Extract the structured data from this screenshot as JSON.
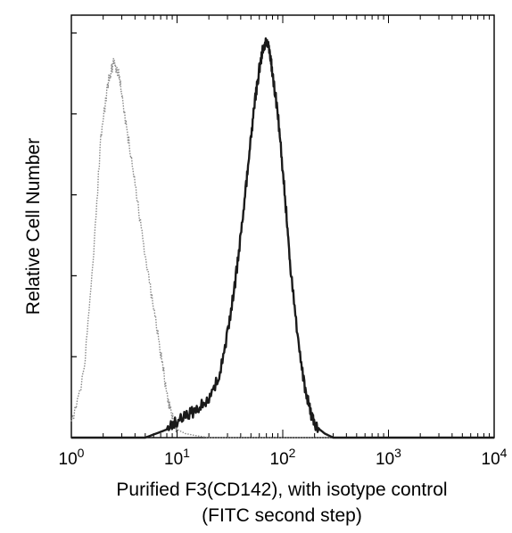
{
  "chart_data": {
    "type": "line",
    "title": "",
    "xlabel": "Purified F3(CD142), with isotype control",
    "xlabel_line2": "(FITC second step)",
    "ylabel": "Relative Cell Number",
    "x_scale": "log",
    "xlim": [
      1,
      10000
    ],
    "ylim": [
      0,
      1
    ],
    "x_ticks": [
      {
        "value": 1,
        "base": "10",
        "exp": "0"
      },
      {
        "value": 10,
        "base": "10",
        "exp": "1"
      },
      {
        "value": 100,
        "base": "10",
        "exp": "2"
      },
      {
        "value": 1000,
        "base": "10",
        "exp": "3"
      },
      {
        "value": 10000,
        "base": "10",
        "exp": "4"
      }
    ],
    "y_ticks": [
      0,
      0.2,
      0.4,
      0.6,
      0.8,
      1.0
    ],
    "grid": false,
    "legend": "none",
    "series": [
      {
        "style": "dotted-gray",
        "color": "#8a8a8a",
        "x": [
          1.0,
          1.3,
          1.6,
          1.9,
          2.2,
          2.5,
          2.8,
          3.1,
          3.6,
          4.2,
          5.0,
          6.0,
          7.0,
          8.0,
          9.0,
          10.0,
          12.0,
          15.0,
          20.0,
          50.0,
          100.0,
          1000.0,
          10000.0
        ],
        "y": [
          0.04,
          0.15,
          0.43,
          0.74,
          0.87,
          0.93,
          0.9,
          0.82,
          0.71,
          0.59,
          0.45,
          0.32,
          0.21,
          0.11,
          0.05,
          0.02,
          0.01,
          0.005,
          0.0,
          0.0,
          0.0,
          0.0,
          0.0
        ]
      },
      {
        "style": "solid-black",
        "color": "#1a1a1a",
        "x": [
          1.0,
          5.0,
          8.0,
          10.0,
          13.0,
          16.0,
          20.0,
          25.0,
          30.0,
          35.0,
          40.0,
          45.0,
          50.0,
          55.0,
          60.0,
          65.0,
          70.0,
          75.0,
          80.0,
          90.0,
          100.0,
          110.0,
          120.0,
          140.0,
          160.0,
          180.0,
          200.0,
          250.0,
          300.0,
          400.0,
          1000.0,
          10000.0
        ],
        "y": [
          0.0,
          0.0,
          0.02,
          0.04,
          0.06,
          0.07,
          0.1,
          0.15,
          0.26,
          0.37,
          0.5,
          0.62,
          0.74,
          0.84,
          0.91,
          0.96,
          0.98,
          0.96,
          0.9,
          0.8,
          0.66,
          0.53,
          0.4,
          0.24,
          0.13,
          0.07,
          0.03,
          0.01,
          0.0,
          0.0,
          0.0,
          0.0
        ]
      }
    ]
  }
}
